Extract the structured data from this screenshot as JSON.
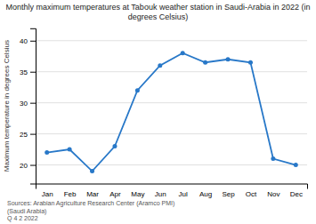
{
  "chart_data": {
    "type": "line",
    "title": "Monthly maximum temperatures at Tabouk weather station in Saudi-Arabia in 2022 (in\ndegrees Celsius)",
    "categories": [
      "Jan",
      "Feb",
      "Mar",
      "Apr",
      "May",
      "Jun",
      "Jul",
      "Aug",
      "Sep",
      "Oct",
      "Nov",
      "Dec"
    ],
    "values": [
      22,
      22.5,
      19,
      23,
      32,
      36,
      38,
      36.5,
      37,
      36.5,
      21,
      20
    ],
    "y_label": "Maximum temperature in degrees Celsius",
    "ylim": [
      17,
      42
    ],
    "yticks": [
      20,
      25,
      30,
      35,
      40
    ],
    "color": "#2878c8",
    "marker": "circle",
    "grid": true,
    "annotations": [
      "Sources: Arabian Agriculture Research Center (Aramco PMI)\n(Saudi Arabia)\nQ 4 2 2022"
    ]
  }
}
